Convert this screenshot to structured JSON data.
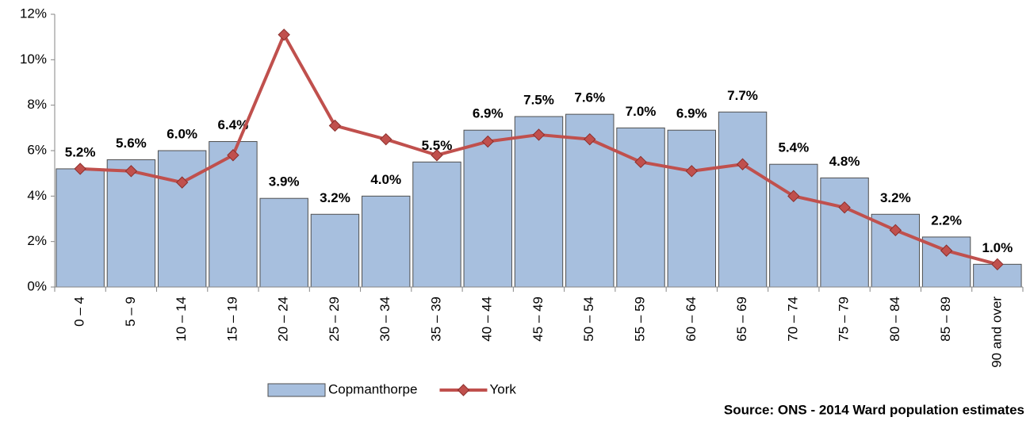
{
  "chart_data": {
    "type": "bar_line",
    "categories": [
      "0 – 4",
      "5 – 9",
      "10 – 14",
      "15 – 19",
      "20 – 24",
      "25 – 29",
      "30 – 34",
      "35 – 39",
      "40 – 44",
      "45 – 49",
      "50 – 54",
      "55 – 59",
      "60 – 64",
      "65 – 69",
      "70 – 74",
      "75 – 79",
      "80 – 84",
      "85 – 89",
      "90 and over"
    ],
    "series": [
      {
        "name": "Copmanthorpe",
        "type": "bar",
        "color": "#a7bfde",
        "values": [
          5.2,
          5.6,
          6.0,
          6.4,
          3.9,
          3.2,
          4.0,
          5.5,
          6.9,
          7.5,
          7.6,
          7.0,
          6.9,
          7.7,
          5.4,
          4.8,
          3.2,
          2.2,
          1.0
        ],
        "value_labels": [
          "5.2%",
          "5.6%",
          "6.0%",
          "6.4%",
          "3.9%",
          "3.2%",
          "4.0%",
          "5.5%",
          "6.9%",
          "7.5%",
          "7.6%",
          "7.0%",
          "6.9%",
          "7.7%",
          "5.4%",
          "4.8%",
          "3.2%",
          "2.2%",
          "1.0%"
        ]
      },
      {
        "name": "York",
        "type": "line",
        "color": "#c0504d",
        "values": [
          5.2,
          5.1,
          4.6,
          5.8,
          11.1,
          7.1,
          6.5,
          5.8,
          6.4,
          6.7,
          6.5,
          5.5,
          5.1,
          5.4,
          4.0,
          3.5,
          2.5,
          1.6,
          1.0
        ]
      }
    ],
    "ylim": [
      0,
      12
    ],
    "yticks": [
      {
        "value": 0,
        "label": "0%"
      },
      {
        "value": 2,
        "label": "2%"
      },
      {
        "value": 4,
        "label": "4%"
      },
      {
        "value": 6,
        "label": "6%"
      },
      {
        "value": 8,
        "label": "8%"
      },
      {
        "value": 10,
        "label": "10%"
      },
      {
        "value": 12,
        "label": "12%"
      }
    ],
    "grid": false,
    "legend": "bottom",
    "source": "Source: ONS - 2014 Ward population estimates"
  }
}
